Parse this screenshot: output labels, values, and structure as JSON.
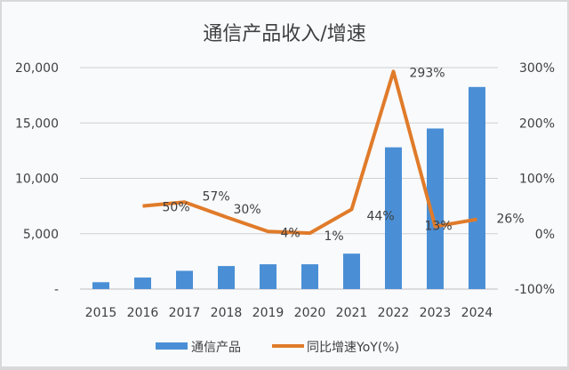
{
  "chart_data": {
    "type": "bar+line",
    "title": "通信产品收入/增速",
    "categories": [
      "2015",
      "2016",
      "2017",
      "2018",
      "2019",
      "2020",
      "2021",
      "2022",
      "2023",
      "2024"
    ],
    "series": [
      {
        "name": "通信产品",
        "type": "bar",
        "axis": "left",
        "color": "#4a8fd6",
        "values": [
          620,
          1040,
          1650,
          2080,
          2240,
          2240,
          3200,
          12800,
          14500,
          18250
        ]
      },
      {
        "name": "同比增速YoY(%)",
        "type": "line",
        "axis": "right",
        "color": "#e07b2a",
        "values": [
          null,
          50,
          57,
          30,
          4,
          1,
          44,
          293,
          13,
          26
        ],
        "data_labels": [
          null,
          "50%",
          "57%",
          "30%",
          "4%",
          "1%",
          "44%",
          "293%",
          "13%",
          "26%"
        ]
      }
    ],
    "left_axis": {
      "ylim": [
        0,
        20000
      ],
      "ticks": [
        0,
        5000,
        10000,
        15000,
        20000
      ],
      "tick_labels": [
        "-",
        "5,000",
        "10,000",
        "15,000",
        "20,000"
      ]
    },
    "right_axis": {
      "ylim": [
        -100,
        300
      ],
      "ticks": [
        -100,
        0,
        100,
        200,
        300
      ],
      "tick_labels": [
        "-100%",
        "0%",
        "100%",
        "200%",
        "300%"
      ]
    },
    "grid": true,
    "legend": {
      "position": "bottom",
      "entries": [
        "通信产品",
        "同比增速YoY(%)"
      ]
    },
    "xlabel": "",
    "ylabel": ""
  }
}
